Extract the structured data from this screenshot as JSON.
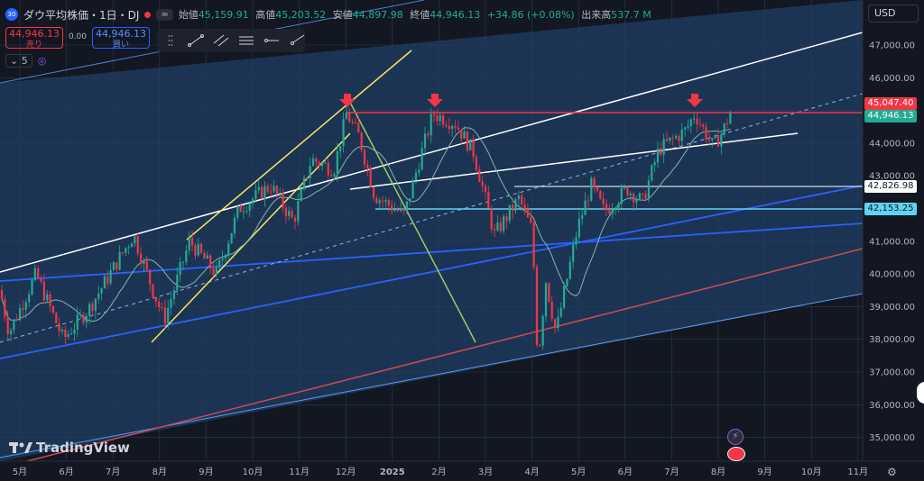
{
  "header": {
    "symbol_badge": "30",
    "symbol": "ダウ平均株価・1日・DJ",
    "toggle_label": "≈",
    "open_label": "始値",
    "open": "45,159.91",
    "high_label": "高値",
    "high": "45,203.52",
    "low_label": "安値",
    "low": "44,897.98",
    "close_label": "終値",
    "close": "44,946.13",
    "change": "+34.86 (+0.08%)",
    "volume_label": "出来高",
    "volume": "537.7 M"
  },
  "trade": {
    "sell_price": "44,946.13",
    "sell_label": "売り",
    "spread": "0.00",
    "buy_price": "44,946.13",
    "buy_label": "買い"
  },
  "indicators": {
    "count": "5"
  },
  "currency": "USD",
  "logo": "TradingView",
  "price_labels": {
    "resistance": "45,047.40",
    "last": "44,946.13",
    "level_1": "42,826.98",
    "level_2": "42,153.25"
  },
  "colors": {
    "up": "#22ab94",
    "down": "#f23645",
    "white": "#ffffff",
    "yellow": "#f5e663",
    "blue": "#2962ff",
    "cyan": "#5fd3f3",
    "red": "#c94b56",
    "green": "#9ccc65"
  },
  "chart_data": {
    "type": "candlestick",
    "y_axis": {
      "ticks": [
        35000,
        36000,
        37000,
        38000,
        39000,
        40000,
        41000,
        42000,
        43000,
        44000,
        45000,
        46000,
        47000
      ],
      "range": [
        34700,
        47600
      ]
    },
    "x_axis": {
      "ticks": [
        "5月",
        "6月",
        "7月",
        "8月",
        "9月",
        "10月",
        "11月",
        "12月",
        "2025",
        "2月",
        "3月",
        "4月",
        "5月",
        "6月",
        "7月",
        "8月",
        "9月",
        "10月",
        "11月"
      ]
    },
    "series_close": [
      {
        "month": "2024-05",
        "close": 39500
      },
      {
        "month": "2024-06",
        "close": 39100
      },
      {
        "month": "2024-07",
        "close": 40800
      },
      {
        "month": "2024-08",
        "close": 41600
      },
      {
        "month": "2024-09",
        "close": 42300
      },
      {
        "month": "2024-10",
        "close": 42000
      },
      {
        "month": "2024-11",
        "close": 44900
      },
      {
        "month": "2024-12",
        "close": 42500
      },
      {
        "month": "2025-01",
        "close": 44500
      },
      {
        "month": "2025-02",
        "close": 43800
      },
      {
        "month": "2025-03",
        "close": 42000
      },
      {
        "month": "2025-04",
        "close": 40700
      },
      {
        "month": "2025-05",
        "close": 42300
      },
      {
        "month": "2025-06",
        "close": 44100
      },
      {
        "month": "2025-07",
        "close": 44100
      },
      {
        "month": "2025-08",
        "close": 44946
      }
    ],
    "horizontal_levels": [
      45047.4,
      42826.98,
      42153.25
    ]
  }
}
